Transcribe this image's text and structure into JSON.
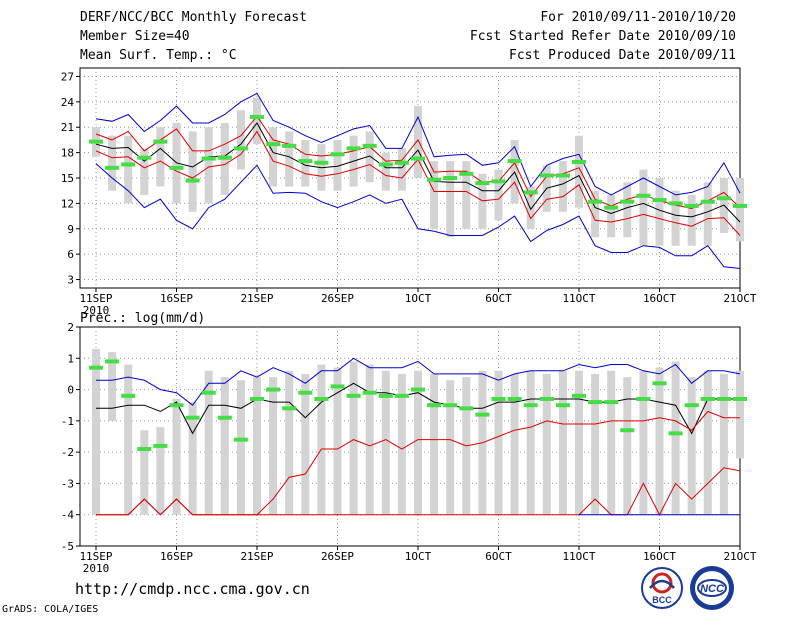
{
  "header": {
    "title": "DERF/NCC/BCC Monthly Forecast",
    "member_size": "Member Size=40",
    "variable": "Mean Surf. Temp.: °C",
    "forecast_period": "For 2010/09/11-2010/10/20",
    "started_refer": "Fcst Started Refer Date 2010/09/10",
    "produced": "Fcst Produced Date 2010/09/11"
  },
  "footer": {
    "url": "http://cmdp.ncc.cma.gov.cn",
    "grads": "GrADS: COLA/IGES",
    "logo1_text": "BCC",
    "logo2_text": "NCC"
  },
  "colors": {
    "max_line": "#0000cc",
    "min_line": "#0000cc",
    "spread_line": "#dd0000",
    "mean_line": "#000000",
    "bar": "#d3d3d3",
    "green": "#44dd44",
    "grid": "#999999"
  },
  "chart_data": [
    {
      "type": "line",
      "title": "Mean Surf. Temp.: °C",
      "days": 40,
      "x_ticks": [
        {
          "day": 1,
          "label": "11SEP",
          "sub": "2010"
        },
        {
          "day": 6,
          "label": "16SEP"
        },
        {
          "day": 11,
          "label": "21SEP"
        },
        {
          "day": 16,
          "label": "26SEP"
        },
        {
          "day": 21,
          "label": "1OCT"
        },
        {
          "day": 26,
          "label": "6OCT"
        },
        {
          "day": 31,
          "label": "11OCT"
        },
        {
          "day": 36,
          "label": "16OCT"
        },
        {
          "day": 41,
          "label": "21OCT"
        }
      ],
      "ylim": [
        2,
        28
      ],
      "y_ticks": [
        3,
        6,
        9,
        12,
        15,
        18,
        21,
        24,
        27
      ],
      "series": [
        {
          "name": "max",
          "values": [
            22.0,
            21.7,
            22.5,
            20.5,
            21.8,
            23.5,
            21.5,
            21.5,
            22.5,
            24.0,
            25.0,
            21.8,
            21.0,
            20.0,
            19.2,
            20.0,
            20.8,
            21.2,
            18.5,
            18.5,
            22.2,
            17.5,
            17.7,
            17.8,
            16.5,
            16.8,
            18.7,
            14.0,
            16.5,
            17.3,
            17.8,
            14.0,
            13.0,
            14.0,
            15.0,
            14.0,
            13.0,
            13.3,
            14.0,
            16.8,
            13.2
          ]
        },
        {
          "name": "upper",
          "values": [
            20.2,
            19.5,
            20.5,
            18.2,
            19.5,
            20.8,
            18.2,
            18.2,
            19.0,
            20.0,
            22.3,
            19.5,
            19.0,
            17.8,
            17.6,
            17.8,
            18.2,
            18.7,
            17.0,
            17.1,
            19.5,
            15.7,
            15.8,
            15.8,
            14.5,
            14.6,
            16.8,
            12.8,
            15.2,
            15.5,
            16.2,
            12.5,
            11.7,
            12.5,
            13.0,
            12.3,
            11.8,
            11.4,
            12.3,
            13.3,
            11.5
          ]
        },
        {
          "name": "mean",
          "values": [
            19.0,
            18.5,
            18.6,
            17.0,
            18.5,
            16.8,
            16.3,
            17.5,
            17.6,
            19.0,
            21.5,
            18.0,
            17.5,
            16.5,
            16.2,
            16.4,
            17.0,
            17.6,
            16.2,
            16.2,
            18.3,
            14.6,
            14.5,
            14.5,
            13.5,
            13.5,
            15.7,
            11.3,
            13.8,
            14.3,
            15.3,
            11.5,
            10.8,
            11.5,
            12.0,
            11.2,
            10.6,
            10.4,
            11.0,
            11.8,
            9.8
          ]
        },
        {
          "name": "lower",
          "values": [
            18.2,
            17.4,
            17.5,
            16.2,
            17.0,
            15.8,
            15.0,
            16.3,
            16.6,
            17.8,
            20.5,
            17.0,
            16.4,
            15.5,
            15.2,
            15.5,
            16.0,
            16.6,
            15.3,
            15.0,
            17.2,
            13.4,
            13.4,
            13.4,
            12.3,
            12.5,
            14.5,
            10.2,
            12.5,
            12.8,
            14.2,
            10.0,
            9.8,
            10.2,
            10.7,
            10.2,
            9.7,
            9.3,
            10.2,
            10.3,
            8.2
          ]
        },
        {
          "name": "min",
          "values": [
            16.7,
            15.0,
            13.5,
            11.5,
            12.5,
            10.0,
            9.0,
            11.5,
            12.5,
            14.5,
            16.5,
            13.2,
            13.3,
            13.2,
            12.2,
            11.5,
            12.2,
            13.0,
            12.0,
            12.5,
            9.0,
            8.7,
            8.2,
            8.2,
            8.2,
            9.2,
            10.5,
            7.5,
            8.8,
            9.5,
            10.5,
            7.0,
            6.2,
            6.2,
            7.0,
            6.8,
            5.8,
            5.8,
            7.0,
            4.5,
            4.3
          ]
        }
      ],
      "bars": [
        {
          "day": 1,
          "low": 17.5,
          "high": 21.0
        },
        {
          "day": 2,
          "low": 13.5,
          "high": 20.0
        },
        {
          "day": 3,
          "low": 12.0,
          "high": 20.0
        },
        {
          "day": 4,
          "low": 13.0,
          "high": 18.5
        },
        {
          "day": 5,
          "low": 14.0,
          "high": 21.0
        },
        {
          "day": 6,
          "low": 12.0,
          "high": 21.5
        },
        {
          "day": 7,
          "low": 11.0,
          "high": 20.5
        },
        {
          "day": 8,
          "low": 12.0,
          "high": 21.0
        },
        {
          "day": 9,
          "low": 13.0,
          "high": 21.5
        },
        {
          "day": 10,
          "low": 16.0,
          "high": 23.0
        },
        {
          "day": 11,
          "low": 19.0,
          "high": 24.5
        },
        {
          "day": 12,
          "low": 14.0,
          "high": 21.0
        },
        {
          "day": 13,
          "low": 14.0,
          "high": 20.5
        },
        {
          "day": 14,
          "low": 14.0,
          "high": 19.5
        },
        {
          "day": 15,
          "low": 13.5,
          "high": 19.0
        },
        {
          "day": 16,
          "low": 13.5,
          "high": 19.5
        },
        {
          "day": 17,
          "low": 14.0,
          "high": 20.0
        },
        {
          "day": 18,
          "low": 14.5,
          "high": 20.5
        },
        {
          "day": 19,
          "low": 13.5,
          "high": 18.0
        },
        {
          "day": 20,
          "low": 13.5,
          "high": 18.5
        },
        {
          "day": 21,
          "low": 15.0,
          "high": 23.5
        },
        {
          "day": 22,
          "low": 9.0,
          "high": 17.0
        },
        {
          "day": 23,
          "low": 8.0,
          "high": 17.0
        },
        {
          "day": 24,
          "low": 9.0,
          "high": 17.0
        },
        {
          "day": 25,
          "low": 9.0,
          "high": 15.5
        },
        {
          "day": 26,
          "low": 10.0,
          "high": 16.0
        },
        {
          "day": 27,
          "low": 12.0,
          "high": 19.5
        },
        {
          "day": 28,
          "low": 9.0,
          "high": 14.0
        },
        {
          "day": 29,
          "low": 11.0,
          "high": 16.5
        },
        {
          "day": 30,
          "low": 11.0,
          "high": 17.0
        },
        {
          "day": 31,
          "low": 11.5,
          "high": 20.0
        },
        {
          "day": 32,
          "low": 8.0,
          "high": 13.5
        },
        {
          "day": 33,
          "low": 8.0,
          "high": 13.0
        },
        {
          "day": 34,
          "low": 8.0,
          "high": 14.5
        },
        {
          "day": 35,
          "low": 7.0,
          "high": 16.0
        },
        {
          "day": 36,
          "low": 7.0,
          "high": 15.0
        },
        {
          "day": 37,
          "low": 7.0,
          "high": 13.5
        },
        {
          "day": 38,
          "low": 7.0,
          "high": 13.0
        },
        {
          "day": 39,
          "low": 7.0,
          "high": 14.5
        },
        {
          "day": 40,
          "low": 8.5,
          "high": 15.0
        },
        {
          "day": 41,
          "low": 7.5,
          "high": 15.0
        }
      ],
      "green_marks": [
        19.3,
        16.2,
        16.6,
        17.4,
        19.3,
        16.2,
        14.7,
        17.3,
        17.4,
        18.5,
        22.2,
        19.0,
        18.8,
        17.0,
        16.8,
        17.8,
        18.5,
        18.8,
        16.6,
        16.8,
        17.3,
        14.8,
        15.0,
        15.5,
        14.4,
        14.6,
        17.0,
        13.3,
        15.3,
        15.3,
        16.9,
        12.2,
        11.5,
        12.2,
        12.9,
        12.4,
        12.0,
        11.7,
        12.2,
        12.6,
        11.7
      ]
    },
    {
      "type": "line",
      "title": "Prec.: log(mm/d)",
      "days": 40,
      "x_ticks": [
        {
          "day": 1,
          "label": "11SEP",
          "sub": "2010"
        },
        {
          "day": 6,
          "label": "16SEP"
        },
        {
          "day": 11,
          "label": "21SEP"
        },
        {
          "day": 16,
          "label": "26SEP"
        },
        {
          "day": 21,
          "label": "1OCT"
        },
        {
          "day": 26,
          "label": "6OCT"
        },
        {
          "day": 31,
          "label": "11OCT"
        },
        {
          "day": 36,
          "label": "16OCT"
        },
        {
          "day": 41,
          "label": "21OCT"
        }
      ],
      "ylim": [
        -5,
        2
      ],
      "y_ticks": [
        -5,
        -4,
        -3,
        -2,
        -1,
        0,
        1,
        2
      ],
      "series": [
        {
          "name": "max",
          "values": [
            0.3,
            0.3,
            0.4,
            0.3,
            0.0,
            -0.1,
            -0.5,
            0.2,
            0.2,
            0.6,
            0.4,
            0.7,
            0.5,
            0.2,
            0.6,
            0.6,
            1.0,
            0.7,
            0.7,
            0.7,
            0.9,
            0.5,
            0.5,
            0.5,
            0.5,
            0.3,
            0.5,
            0.6,
            0.6,
            0.6,
            0.8,
            0.7,
            0.8,
            0.8,
            0.6,
            0.5,
            0.8,
            0.2,
            0.6,
            0.6,
            0.5
          ]
        },
        {
          "name": "mean",
          "values": [
            -0.6,
            -0.6,
            -0.5,
            -0.5,
            -0.7,
            -0.4,
            -1.4,
            -0.5,
            -0.5,
            -0.6,
            -0.3,
            -0.4,
            -0.4,
            -0.9,
            -0.4,
            -0.1,
            0.2,
            -0.1,
            -0.1,
            -0.2,
            -0.1,
            -0.4,
            -0.5,
            -0.6,
            -0.6,
            -0.4,
            -0.4,
            -0.3,
            -0.3,
            -0.3,
            -0.3,
            -0.4,
            -0.4,
            -0.3,
            -0.3,
            -0.4,
            -0.5,
            -1.4,
            -0.3,
            -0.3,
            -0.3
          ]
        },
        {
          "name": "lower",
          "values": [
            -4.0,
            -4.0,
            -4.0,
            -3.5,
            -4.0,
            -3.5,
            -4.0,
            -4.0,
            -4.0,
            -4.0,
            -4.0,
            -3.5,
            -2.8,
            -2.7,
            -1.9,
            -1.9,
            -1.6,
            -1.8,
            -1.6,
            -1.9,
            -1.6,
            -1.6,
            -1.6,
            -1.8,
            -1.7,
            -1.5,
            -1.3,
            -1.2,
            -1.0,
            -1.1,
            -1.1,
            -1.1,
            -1.0,
            -1.0,
            -1.0,
            -0.9,
            -1.0,
            -1.3,
            -0.7,
            -0.9,
            -0.9
          ]
        },
        {
          "name": "bottom",
          "values": [
            -4.0,
            -4.0,
            -4.0,
            -3.5,
            -4.0,
            -3.5,
            -4.0,
            -4.0,
            -4.0,
            -4.0,
            -4.0,
            -4.0,
            -4.0,
            -4.0,
            -4.0,
            -4.0,
            -4.0,
            -4.0,
            -4.0,
            -4.0,
            -4.0,
            -4.0,
            -4.0,
            -4.0,
            -4.0,
            -4.0,
            -4.0,
            -4.0,
            -4.0,
            -4.0,
            -4.0,
            -3.5,
            -4.0,
            -4.0,
            -3.0,
            -4.0,
            -3.0,
            -3.5,
            -3.0,
            -2.5,
            -2.6
          ]
        }
      ],
      "bars": [
        {
          "day": 1,
          "low": -4.0,
          "high": 1.3
        },
        {
          "day": 2,
          "low": -1.0,
          "high": 1.2
        },
        {
          "day": 3,
          "low": -4.0,
          "high": 0.8
        },
        {
          "day": 4,
          "low": -4.0,
          "high": -1.3
        },
        {
          "day": 5,
          "low": -4.0,
          "high": -1.2
        },
        {
          "day": 6,
          "low": -4.0,
          "high": -0.3
        },
        {
          "day": 7,
          "low": -4.0,
          "high": -0.4
        },
        {
          "day": 8,
          "low": -4.0,
          "high": 0.6
        },
        {
          "day": 9,
          "low": -4.0,
          "high": 0.4
        },
        {
          "day": 10,
          "low": -4.0,
          "high": 0.3
        },
        {
          "day": 11,
          "low": -4.0,
          "high": 0.4
        },
        {
          "day": 12,
          "low": -4.0,
          "high": 0.4
        },
        {
          "day": 13,
          "low": -4.0,
          "high": 0.6
        },
        {
          "day": 14,
          "low": -4.0,
          "high": 0.5
        },
        {
          "day": 15,
          "low": -4.0,
          "high": 0.8
        },
        {
          "day": 16,
          "low": -4.0,
          "high": 0.7
        },
        {
          "day": 17,
          "low": -4.0,
          "high": 0.9
        },
        {
          "day": 18,
          "low": -4.0,
          "high": 0.8
        },
        {
          "day": 19,
          "low": -4.0,
          "high": 0.6
        },
        {
          "day": 20,
          "low": -4.0,
          "high": 0.5
        },
        {
          "day": 21,
          "low": -4.0,
          "high": 0.6
        },
        {
          "day": 22,
          "low": -4.0,
          "high": 0.5
        },
        {
          "day": 23,
          "low": -4.0,
          "high": 0.3
        },
        {
          "day": 24,
          "low": -4.0,
          "high": 0.4
        },
        {
          "day": 25,
          "low": -4.0,
          "high": 0.6
        },
        {
          "day": 26,
          "low": -4.0,
          "high": 0.6
        },
        {
          "day": 27,
          "low": -4.0,
          "high": 0.5
        },
        {
          "day": 28,
          "low": -4.0,
          "high": 0.6
        },
        {
          "day": 29,
          "low": -4.0,
          "high": 0.5
        },
        {
          "day": 30,
          "low": -4.0,
          "high": 0.6
        },
        {
          "day": 31,
          "low": -4.0,
          "high": 0.6
        },
        {
          "day": 32,
          "low": -4.0,
          "high": 0.5
        },
        {
          "day": 33,
          "low": -4.0,
          "high": 0.6
        },
        {
          "day": 34,
          "low": -4.0,
          "high": 0.4
        },
        {
          "day": 35,
          "low": -4.0,
          "high": 0.6
        },
        {
          "day": 36,
          "low": -4.0,
          "high": 0.7
        },
        {
          "day": 37,
          "low": -4.0,
          "high": 0.9
        },
        {
          "day": 38,
          "low": -4.0,
          "high": 0.4
        },
        {
          "day": 39,
          "low": -4.0,
          "high": 0.6
        },
        {
          "day": 40,
          "low": -4.0,
          "high": 0.5
        },
        {
          "day": 41,
          "low": -2.2,
          "high": 0.6
        }
      ],
      "green_marks": [
        0.7,
        0.9,
        -0.2,
        -1.9,
        -1.8,
        -0.5,
        -0.9,
        -0.1,
        -0.9,
        -1.6,
        -0.3,
        0.0,
        -0.6,
        -0.1,
        -0.3,
        0.1,
        -0.2,
        -0.1,
        -0.2,
        -0.2,
        0.0,
        -0.5,
        -0.5,
        -0.6,
        -0.8,
        -0.3,
        -0.3,
        -0.5,
        -0.3,
        -0.5,
        -0.2,
        -0.4,
        -0.4,
        -1.3,
        -0.3,
        0.2,
        -1.4,
        -0.5,
        -0.3,
        -0.3,
        -0.3
      ]
    }
  ]
}
